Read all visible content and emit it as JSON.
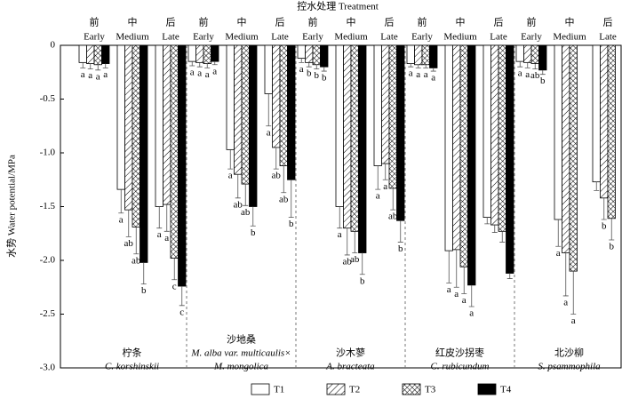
{
  "chart_data": {
    "type": "bar",
    "title": "控水处理 Treatment",
    "y_label": "水势 Water potential/MPa",
    "ylim": [
      0,
      -3.0
    ],
    "yticks": [
      0,
      -0.5,
      {
        "value": -1.0,
        "label": "-1.0"
      },
      -1.5,
      {
        "value": -2.0,
        "label": "-2.0"
      },
      -2.5,
      {
        "value": -3.0,
        "label": "-3.0"
      }
    ],
    "stages": [
      {
        "cn": "前",
        "en": "Early"
      },
      {
        "cn": "中",
        "en": "Medium"
      },
      {
        "cn": "后",
        "en": "Late"
      }
    ],
    "groups": [
      {
        "cn": "柠条",
        "latin": [
          "C. korshinskii"
        ]
      },
      {
        "cn": "沙地桑",
        "latin": [
          "M. alba var. multicaulis×",
          "M. mongolica"
        ]
      },
      {
        "cn": "沙木蓼",
        "latin": [
          "A. bracteata"
        ]
      },
      {
        "cn": "红皮沙拐枣",
        "latin": [
          "C. rubicundum"
        ]
      },
      {
        "cn": "北沙柳",
        "latin": [
          "S. psammophila"
        ]
      }
    ],
    "series": [
      {
        "name": "T1",
        "color": "#ffffff",
        "pattern": "none",
        "values": [
          -0.16,
          -1.34,
          -1.5,
          -0.15,
          -0.97,
          -0.45,
          -0.12,
          -1.5,
          -1.12,
          -0.17,
          -1.91,
          -1.6,
          -0.15,
          -1.62,
          -1.27
        ],
        "errors": [
          0.05,
          0.22,
          0.2,
          0.04,
          0.18,
          0.3,
          0.04,
          0.2,
          0.22,
          0.03,
          0.3,
          0.06,
          0.05,
          0.25,
          0.08
        ],
        "letters": [
          "a",
          "a",
          "a",
          "a",
          "a",
          "a",
          "a",
          "a",
          "a",
          "a",
          "a",
          null,
          "a",
          "a",
          null
        ]
      },
      {
        "name": "T2",
        "color": "#000000",
        "pattern": "diag",
        "values": [
          -0.17,
          -1.53,
          -1.48,
          -0.16,
          -1.2,
          -0.95,
          -0.16,
          -1.7,
          -1.1,
          -0.18,
          -1.9,
          -1.67,
          -0.16,
          -1.93,
          -1.42
        ],
        "errors": [
          0.05,
          0.25,
          0.25,
          0.04,
          0.22,
          0.2,
          0.04,
          0.25,
          0.15,
          0.03,
          0.35,
          0.07,
          0.05,
          0.4,
          0.2
        ],
        "letters": [
          "a",
          "ab",
          "a",
          "a",
          "ab",
          "ab",
          "b",
          "ab",
          "a",
          "a",
          "a",
          null,
          "a",
          "a",
          "b"
        ]
      },
      {
        "name": "T3",
        "color": "#000000",
        "pattern": "cross",
        "values": [
          -0.18,
          -1.69,
          -1.98,
          -0.17,
          -1.29,
          -1.12,
          -0.18,
          -1.73,
          -1.33,
          -0.18,
          -2.06,
          -1.73,
          -0.17,
          -2.1,
          -1.61
        ],
        "errors": [
          0.05,
          0.25,
          0.2,
          0.04,
          0.2,
          0.25,
          0.04,
          0.2,
          0.2,
          0.03,
          0.25,
          0.1,
          0.05,
          0.4,
          0.2
        ],
        "letters": [
          "a",
          "ab",
          "c",
          "a",
          "ab",
          "ab",
          "b",
          "ab",
          "ab",
          "a",
          "a",
          null,
          "ab",
          "a",
          "b"
        ]
      },
      {
        "name": "T4",
        "color": "#000000",
        "pattern": "solid",
        "values": [
          -0.17,
          -2.02,
          -2.24,
          -0.15,
          -1.5,
          -1.25,
          -0.2,
          -1.93,
          -1.63,
          -0.21,
          -2.23,
          -2.12,
          -0.23,
          null,
          null
        ],
        "errors": [
          0.04,
          0.2,
          0.18,
          0.03,
          0.18,
          0.35,
          0.04,
          0.2,
          0.2,
          0.03,
          0.2,
          0.05,
          0.04,
          null,
          null
        ],
        "letters": [
          "a",
          "b",
          "c",
          "a",
          "b",
          "b",
          "b",
          "b",
          "b",
          "a",
          "a",
          null,
          "b",
          null,
          null
        ]
      }
    ]
  }
}
